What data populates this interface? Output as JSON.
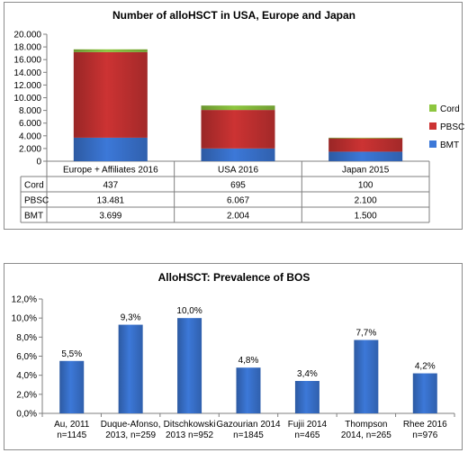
{
  "chart_data": [
    {
      "type": "bar",
      "stacked": true,
      "title": "Number of alloHSCT in USA, Europe and Japan",
      "categories": [
        "Europe + Affiliates 2016",
        "USA 2016",
        "Japan 2015"
      ],
      "series": [
        {
          "name": "BMT",
          "values": [
            3699,
            2004,
            1500
          ],
          "labels": [
            "3.699",
            "2.004",
            "1.500"
          ],
          "color": "#3c78d8"
        },
        {
          "name": "PBSC",
          "values": [
            13481,
            6067,
            2100
          ],
          "labels": [
            "13.481",
            "6.067",
            "2.100"
          ],
          "color": "#cc3333"
        },
        {
          "name": "Cord",
          "values": [
            437,
            695,
            100
          ],
          "labels": [
            "437",
            "695",
            "100"
          ],
          "color": "#8dc63f"
        }
      ],
      "legend_order": [
        "Cord",
        "PBSC",
        "BMT"
      ],
      "table_rows": [
        "Cord",
        "PBSC",
        "BMT"
      ],
      "yticks": [
        "0",
        "2.000",
        "4.000",
        "6.000",
        "8.000",
        "10.000",
        "12.000",
        "14.000",
        "16.000",
        "18.000",
        "20.000"
      ],
      "ylim": [
        0,
        20000
      ],
      "legend": "right",
      "grid": false
    },
    {
      "type": "bar",
      "title": "AlloHSCT: Prevalence of BOS",
      "categories": [
        [
          "Au, 2011",
          "n=1145"
        ],
        [
          "Duque-Afonso,",
          "2013, n=259"
        ],
        [
          "Ditschkowski",
          "2013 n=952"
        ],
        [
          "Gazourian 2014",
          "n=1845"
        ],
        [
          "Fujii 2014",
          "n=465"
        ],
        [
          "Thompson",
          "2014, n=265"
        ],
        [
          "Rhee 2016",
          "n=976"
        ]
      ],
      "values": [
        5.5,
        9.3,
        10.0,
        4.8,
        3.4,
        7.7,
        4.2
      ],
      "data_labels": [
        "5,5%",
        "9,3%",
        "10,0%",
        "4,8%",
        "3,4%",
        "7,7%",
        "4,2%"
      ],
      "yticks": [
        "0,0%",
        "2,0%",
        "4,0%",
        "6,0%",
        "8,0%",
        "10,0%",
        "12,0%"
      ],
      "ylim": [
        0,
        12
      ],
      "color": "#3c78d8",
      "grid": false
    }
  ]
}
